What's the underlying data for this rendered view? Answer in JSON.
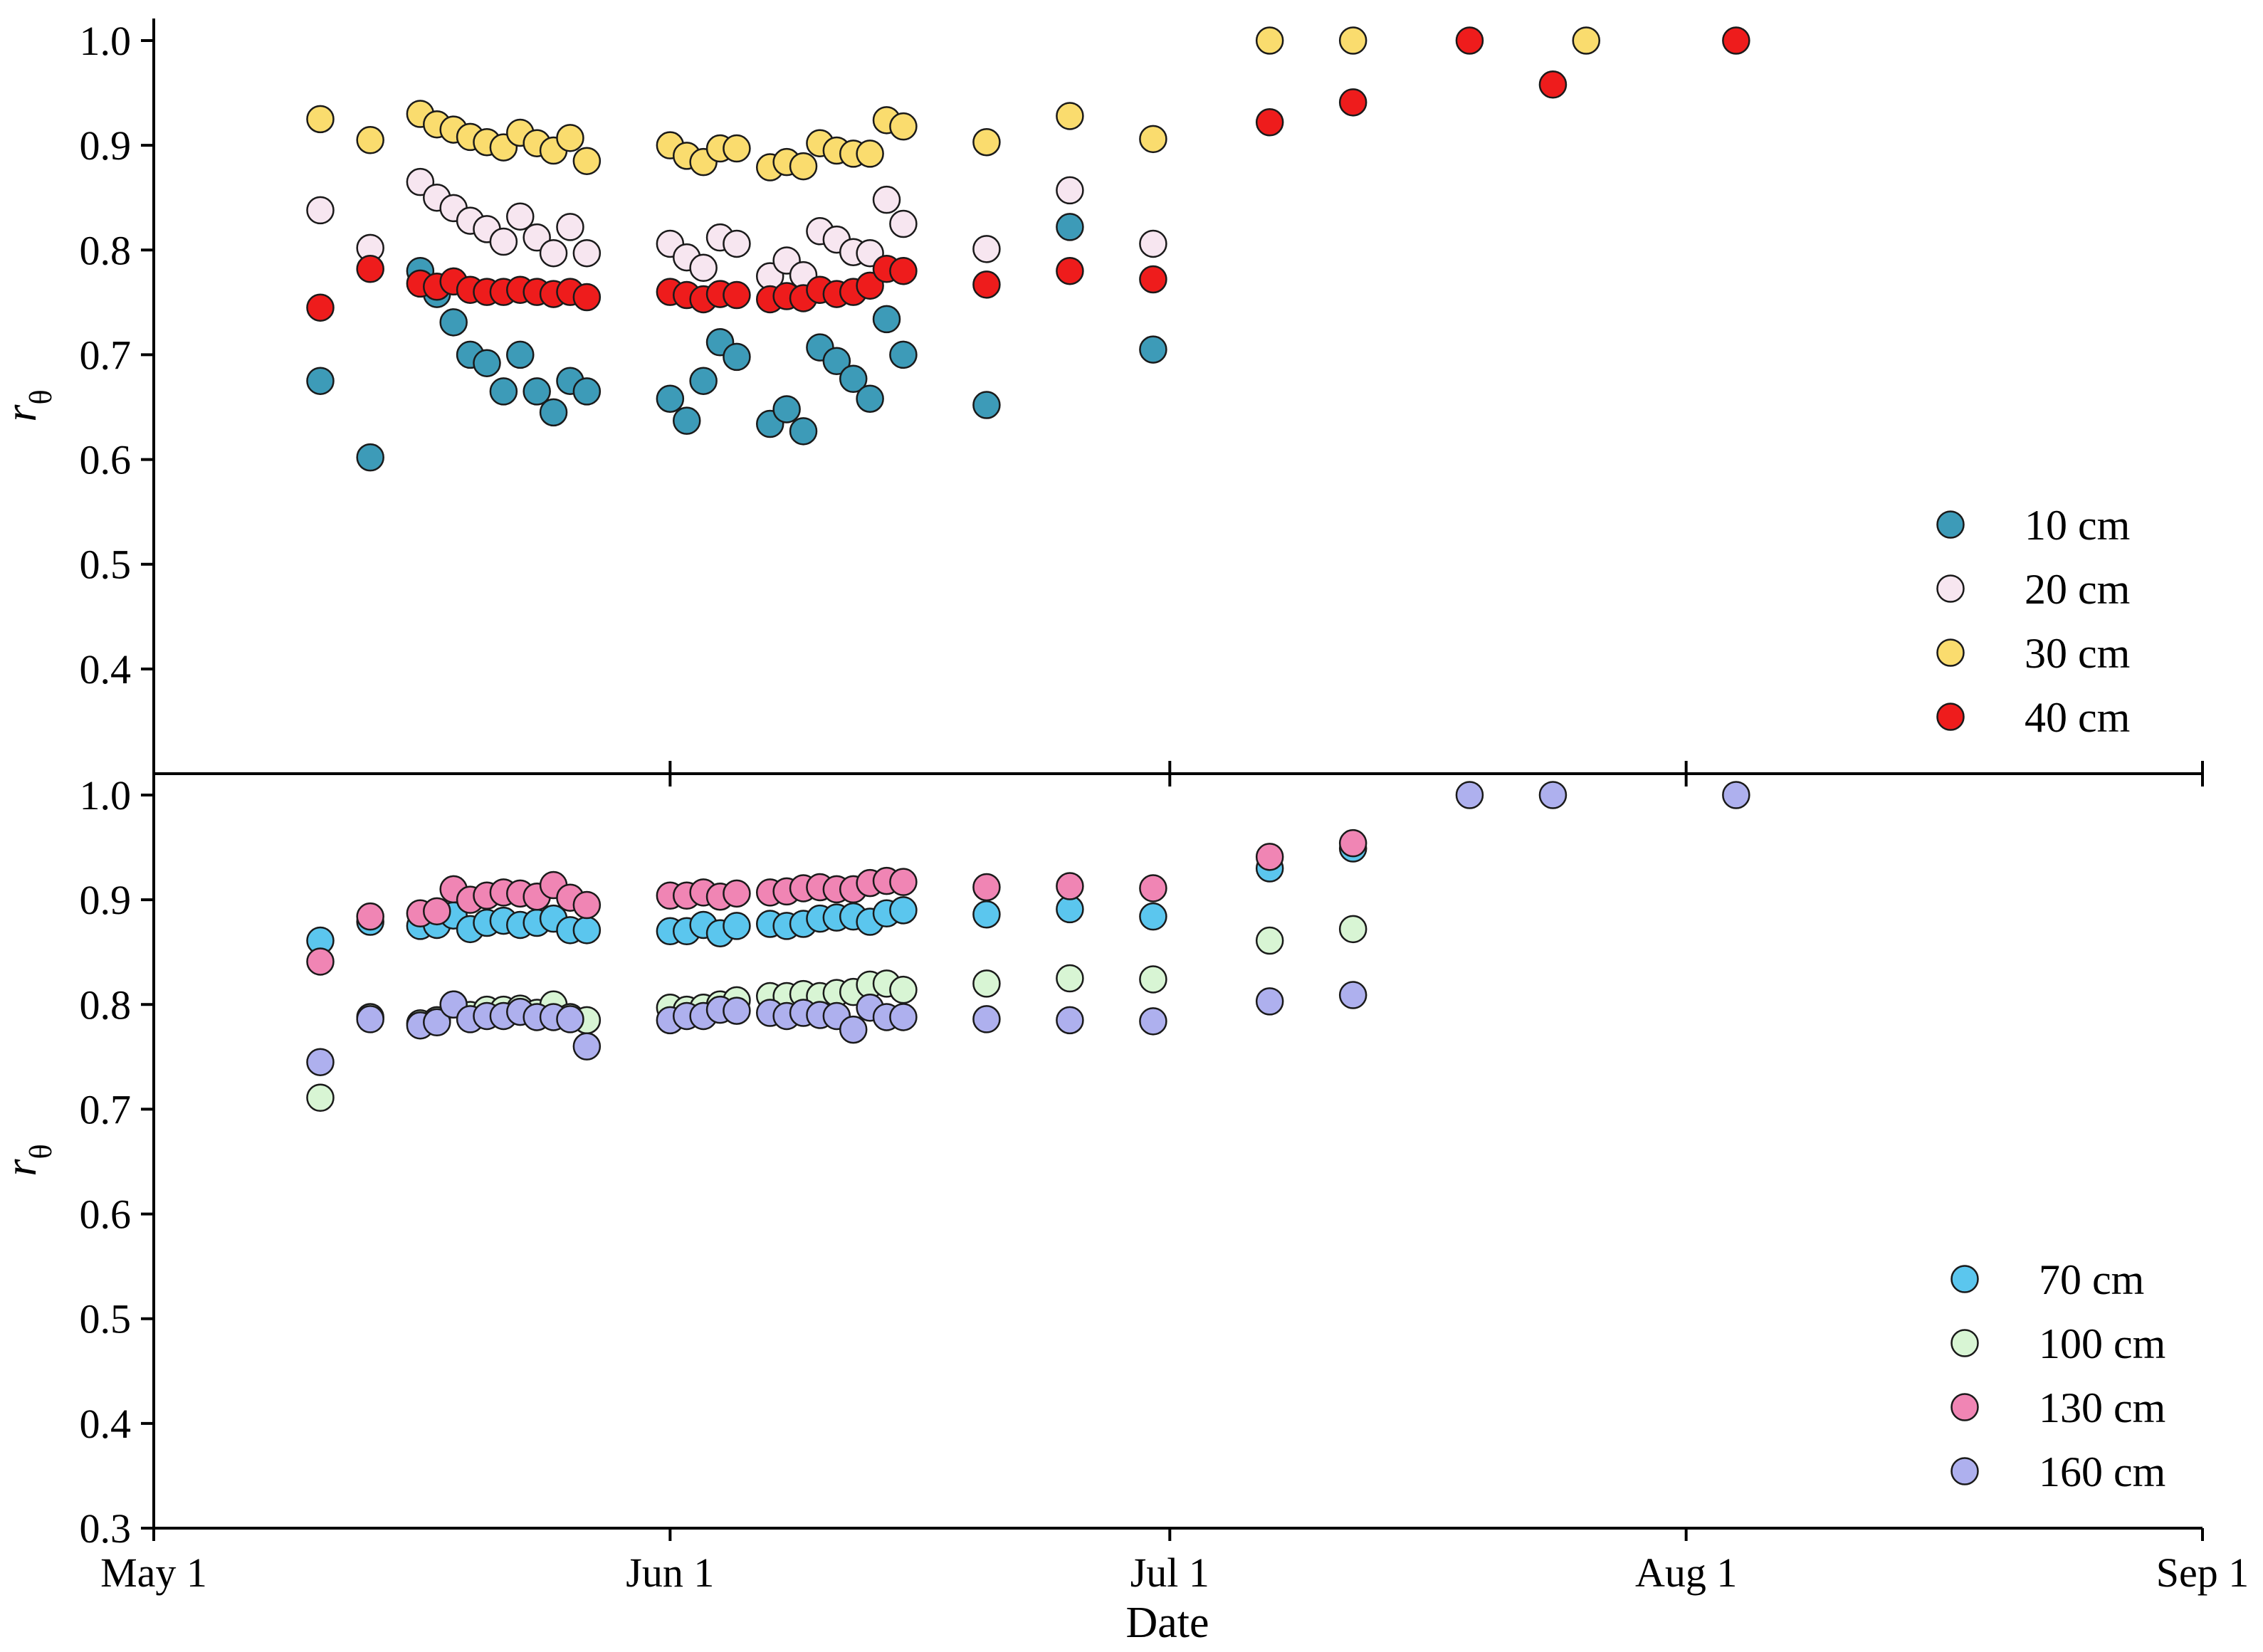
{
  "chart_data": [
    {
      "type": "scatter",
      "panel": "top",
      "ylabel": "r",
      "ylabel_sub": "θ",
      "xlabel": "",
      "ylim": [
        0.3,
        1.0
      ],
      "xlim": [
        0,
        123
      ],
      "yticks": [
        0.4,
        0.5,
        0.6,
        0.7,
        0.8,
        0.9,
        1.0
      ],
      "ytick_labels": [
        "0.4",
        "0.5",
        "0.6",
        "0.7",
        "0.8",
        "0.9",
        "1.0"
      ],
      "legend_position": "bottom-right",
      "series": [
        {
          "name": "10 cm",
          "color": "#3d9bb8",
          "x": [
            10,
            13,
            16,
            17,
            18,
            19,
            20,
            21,
            22,
            23,
            24,
            25,
            26,
            31,
            32,
            33,
            34,
            35,
            37,
            38,
            39,
            40,
            41,
            42,
            43,
            44,
            45,
            50,
            55,
            60
          ],
          "y": [
            0.675,
            0.602,
            0.78,
            0.758,
            0.731,
            0.7,
            0.692,
            0.665,
            0.7,
            0.665,
            0.645,
            0.675,
            0.665,
            0.658,
            0.637,
            0.675,
            0.712,
            0.698,
            0.634,
            0.648,
            0.627,
            0.707,
            0.694,
            0.677,
            0.658,
            0.734,
            0.7,
            0.652,
            0.822,
            0.705
          ]
        },
        {
          "name": "20 cm",
          "color": "#f7e6f0",
          "x": [
            10,
            13,
            16,
            17,
            18,
            19,
            20,
            21,
            22,
            23,
            24,
            25,
            26,
            31,
            32,
            33,
            34,
            35,
            37,
            38,
            39,
            40,
            41,
            42,
            43,
            44,
            45,
            50,
            55,
            60
          ],
          "y": [
            0.838,
            0.802,
            0.865,
            0.85,
            0.84,
            0.828,
            0.82,
            0.808,
            0.832,
            0.812,
            0.797,
            0.822,
            0.797,
            0.806,
            0.793,
            0.783,
            0.812,
            0.806,
            0.775,
            0.79,
            0.776,
            0.818,
            0.81,
            0.798,
            0.797,
            0.848,
            0.825,
            0.801,
            0.857,
            0.806
          ]
        },
        {
          "name": "30 cm",
          "color": "#fadc6e",
          "x": [
            10,
            13,
            16,
            17,
            18,
            19,
            20,
            21,
            22,
            23,
            24,
            25,
            26,
            31,
            32,
            33,
            34,
            35,
            37,
            38,
            39,
            40,
            41,
            42,
            43,
            44,
            45,
            50,
            55,
            60,
            67,
            72,
            86
          ],
          "y": [
            0.925,
            0.905,
            0.93,
            0.92,
            0.915,
            0.908,
            0.903,
            0.898,
            0.912,
            0.902,
            0.895,
            0.907,
            0.885,
            0.9,
            0.89,
            0.884,
            0.897,
            0.897,
            0.879,
            0.884,
            0.88,
            0.902,
            0.895,
            0.892,
            0.892,
            0.924,
            0.918,
            0.903,
            0.928,
            0.906,
            1.0,
            1.0,
            1.0
          ]
        },
        {
          "name": "40 cm",
          "color": "#ee1c1c",
          "x": [
            10,
            13,
            16,
            17,
            18,
            19,
            20,
            21,
            22,
            23,
            24,
            25,
            26,
            31,
            32,
            33,
            34,
            35,
            37,
            38,
            39,
            40,
            41,
            42,
            43,
            44,
            45,
            50,
            55,
            60,
            67,
            72,
            79,
            84,
            95
          ],
          "y": [
            0.745,
            0.782,
            0.768,
            0.765,
            0.77,
            0.762,
            0.76,
            0.76,
            0.762,
            0.76,
            0.758,
            0.76,
            0.755,
            0.76,
            0.757,
            0.753,
            0.758,
            0.757,
            0.753,
            0.756,
            0.754,
            0.762,
            0.758,
            0.76,
            0.766,
            0.782,
            0.78,
            0.767,
            0.78,
            0.772,
            0.922,
            0.941,
            1.0,
            0.958,
            1.0
          ]
        }
      ]
    },
    {
      "type": "scatter",
      "panel": "bottom",
      "ylabel": "r",
      "ylabel_sub": "θ",
      "xlabel": "Date",
      "ylim": [
        0.3,
        1.0
      ],
      "xlim": [
        0,
        123
      ],
      "xticks": [
        0,
        31,
        61,
        92,
        123
      ],
      "xtick_labels": [
        "May 1",
        "Jun 1",
        "Jul 1",
        "Aug 1",
        "Sep 1"
      ],
      "yticks": [
        0.3,
        0.4,
        0.5,
        0.6,
        0.7,
        0.8,
        0.9,
        1.0
      ],
      "ytick_labels": [
        "0.3",
        "0.4",
        "0.5",
        "0.6",
        "0.7",
        "0.8",
        "0.9",
        "1.0"
      ],
      "legend_position": "bottom-right",
      "series": [
        {
          "name": "70 cm",
          "color": "#5bc6ee",
          "x": [
            10,
            13,
            16,
            17,
            18,
            19,
            20,
            21,
            22,
            23,
            24,
            25,
            26,
            31,
            32,
            33,
            34,
            35,
            37,
            38,
            39,
            40,
            41,
            42,
            43,
            44,
            45,
            50,
            55,
            60,
            67,
            72
          ],
          "y": [
            0.861,
            0.879,
            0.875,
            0.876,
            0.885,
            0.872,
            0.878,
            0.88,
            0.876,
            0.878,
            0.882,
            0.871,
            0.871,
            0.87,
            0.87,
            0.876,
            0.868,
            0.875,
            0.877,
            0.875,
            0.877,
            0.882,
            0.883,
            0.884,
            0.879,
            0.887,
            0.89,
            0.886,
            0.891,
            0.884,
            0.93,
            0.949
          ]
        },
        {
          "name": "100 cm",
          "color": "#d8f5d4",
          "x": [
            10,
            13,
            16,
            17,
            18,
            19,
            20,
            21,
            22,
            23,
            24,
            25,
            26,
            31,
            32,
            33,
            34,
            35,
            37,
            38,
            39,
            40,
            41,
            42,
            43,
            44,
            45,
            50,
            55,
            60,
            67,
            72
          ],
          "y": [
            0.711,
            0.788,
            0.782,
            0.785,
            0.8,
            0.79,
            0.795,
            0.795,
            0.796,
            0.792,
            0.8,
            0.788,
            0.785,
            0.797,
            0.795,
            0.797,
            0.8,
            0.804,
            0.808,
            0.808,
            0.81,
            0.808,
            0.811,
            0.812,
            0.819,
            0.82,
            0.814,
            0.82,
            0.825,
            0.824,
            0.861,
            0.872
          ]
        },
        {
          "name": "130 cm",
          "color": "#f085b4",
          "x": [
            10,
            13,
            16,
            17,
            18,
            19,
            20,
            21,
            22,
            23,
            24,
            25,
            26,
            31,
            32,
            33,
            34,
            35,
            37,
            38,
            39,
            40,
            41,
            42,
            43,
            44,
            45,
            50,
            55,
            60,
            67,
            72
          ],
          "y": [
            0.841,
            0.884,
            0.887,
            0.889,
            0.91,
            0.9,
            0.904,
            0.907,
            0.906,
            0.903,
            0.914,
            0.902,
            0.895,
            0.904,
            0.904,
            0.907,
            0.903,
            0.906,
            0.907,
            0.908,
            0.911,
            0.912,
            0.91,
            0.91,
            0.916,
            0.918,
            0.917,
            0.912,
            0.913,
            0.911,
            0.941,
            0.954
          ]
        },
        {
          "name": "160 cm",
          "color": "#aeb0ee",
          "x": [
            10,
            13,
            16,
            17,
            18,
            19,
            20,
            21,
            22,
            23,
            24,
            25,
            26,
            31,
            32,
            33,
            34,
            35,
            37,
            38,
            39,
            40,
            41,
            42,
            43,
            44,
            45,
            50,
            55,
            60,
            67,
            72,
            79,
            84,
            95
          ],
          "y": [
            0.745,
            0.786,
            0.78,
            0.783,
            0.8,
            0.786,
            0.789,
            0.789,
            0.793,
            0.788,
            0.788,
            0.786,
            0.76,
            0.785,
            0.789,
            0.789,
            0.795,
            0.794,
            0.792,
            0.789,
            0.792,
            0.79,
            0.789,
            0.776,
            0.797,
            0.788,
            0.788,
            0.786,
            0.785,
            0.784,
            0.803,
            0.809,
            1.0,
            1.0,
            1.0
          ]
        }
      ]
    }
  ]
}
